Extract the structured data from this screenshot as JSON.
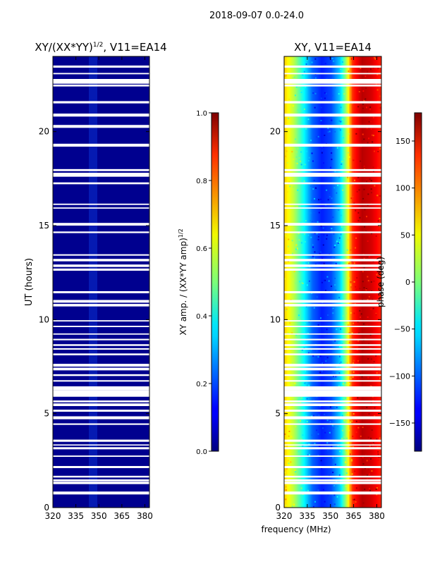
{
  "figure": {
    "suptitle": "2018-09-07 0.0-24.0"
  },
  "chart_data": [
    {
      "type": "heatmap",
      "title_main": "XY/(XX*YY)",
      "title_sup": "1/2",
      "title_tail": ", V11=EA14",
      "xlabel": "",
      "ylabel": "UT (hours)",
      "xlim": [
        320,
        383
      ],
      "ylim": [
        0,
        24
      ],
      "xticks": [
        320,
        335,
        350,
        365,
        380
      ],
      "yticks": [
        0,
        5,
        10,
        15,
        20
      ],
      "colorbar": {
        "label_main": "XY amp. / (XX*YY amp)",
        "label_sup": "1/2",
        "range": [
          0.0,
          1.0
        ],
        "ticks": [
          "0.0",
          "0.2",
          "0.4",
          "0.6",
          "0.8",
          "1.0"
        ]
      },
      "summary": "mostly near 0 (dark blue); slightly elevated near 347-350 MHz"
    },
    {
      "type": "heatmap",
      "title": "XY, V11=EA14",
      "xlabel": "frequency (MHz)",
      "ylabel": "",
      "xlim": [
        320,
        383
      ],
      "ylim": [
        0,
        24
      ],
      "xticks": [
        320,
        335,
        350,
        365,
        380
      ],
      "yticks": [
        0,
        5,
        10,
        15,
        20
      ],
      "colorbar": {
        "label": "phase (deg)",
        "range": [
          -180,
          180
        ],
        "ticks": [
          "−150",
          "−100",
          "−50",
          "0",
          "50",
          "100",
          "150"
        ]
      },
      "summary": "phase gradient from ~60 deg at 320 MHz to ~-120 deg near 345 MHz, rising to ~150 deg above 360 MHz"
    }
  ]
}
